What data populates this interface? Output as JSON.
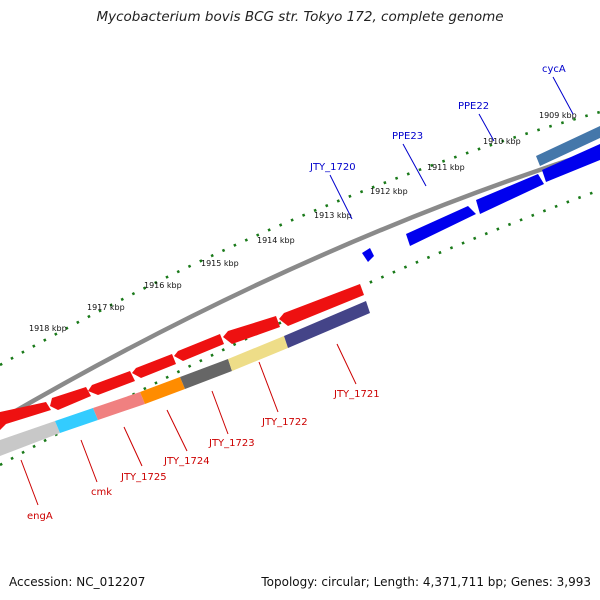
{
  "title": "Mycobacterium bovis BCG str. Tokyo 172, complete genome",
  "accession": "Accession: NC_012207",
  "footer_info": "Topology: circular; Length: 4,371,711 bp; Genes: 3,993",
  "colors": {
    "forward_gene": "#0000ee",
    "reverse_gene": "#ee0000",
    "backbone": "#777777",
    "tick_dots": "#1a7a1a",
    "forward_label": "#0000cc",
    "reverse_label": "#cc0000"
  },
  "kbp_ticks": [
    "1909 kbp",
    "1910 kbp",
    "1911 kbp",
    "1912 kbp",
    "1913 kbp",
    "1914 kbp",
    "1915 kbp",
    "1916 kbp",
    "1917 kbp",
    "1918 kbp"
  ],
  "forward_genes": [
    {
      "label": "cycA",
      "strand": "forward",
      "color": "#0000ee"
    },
    {
      "label": "PPE22",
      "strand": "forward",
      "color": "#0000ee"
    },
    {
      "label": "PPE23",
      "strand": "forward",
      "color": "#0000ee"
    },
    {
      "label": "JTY_1720",
      "strand": "forward",
      "color": "#0000ee"
    }
  ],
  "reverse_genes": [
    {
      "label": "JTY_1721",
      "strand": "reverse",
      "color": "#ee0000"
    },
    {
      "label": "JTY_1722",
      "strand": "reverse",
      "color": "#ee0000"
    },
    {
      "label": "JTY_1723",
      "strand": "reverse",
      "color": "#ee0000"
    },
    {
      "label": "JTY_1724",
      "strand": "reverse",
      "color": "#ee0000"
    },
    {
      "label": "JTY_1725",
      "strand": "reverse",
      "color": "#ee0000"
    },
    {
      "label": "cmk",
      "strand": "reverse",
      "color": "#ee0000"
    },
    {
      "label": "engA",
      "strand": "reverse",
      "color": "#ee0000"
    }
  ]
}
